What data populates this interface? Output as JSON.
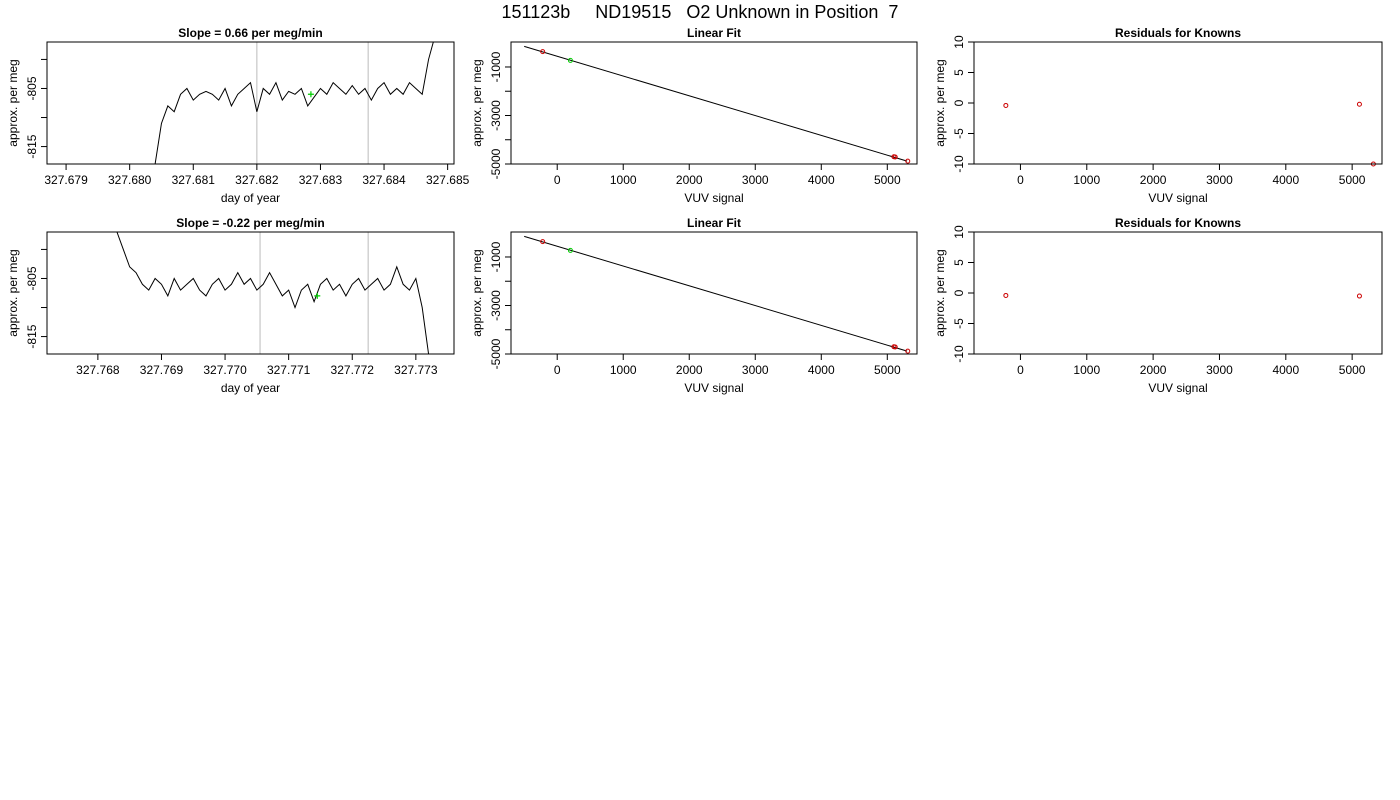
{
  "page": {
    "title": "151123b     ND19515   O2 Unknown in Position  7"
  },
  "chart_data": [
    {
      "type": "line",
      "panel": "time-series-1",
      "title": "Slope =  0.66  per meg/min",
      "xlabel": "day of year",
      "ylabel": "approx. per meg",
      "xlim": [
        327.6787,
        327.6851
      ],
      "ylim": [
        -818,
        -797
      ],
      "xticks": [
        327.679,
        327.68,
        327.681,
        327.682,
        327.683,
        327.684,
        327.685
      ],
      "xtick_labels": [
        "327.679",
        "327.680",
        "327.681",
        "327.682",
        "327.683",
        "327.684",
        "327.685"
      ],
      "yticks": [
        -815,
        -805
      ],
      "ytick_labels": [
        "-815",
        "-805"
      ],
      "yminor": [
        -820,
        -810,
        -800
      ],
      "vlines": [
        327.682,
        327.68375
      ],
      "line_color": "#000000",
      "vline_color": "#bbbbbb",
      "marker_color": "#00cc00",
      "x": [
        327.6804,
        327.6805,
        327.6806,
        327.6807,
        327.6808,
        327.6809,
        327.681,
        327.6811,
        327.6812,
        327.6813,
        327.6814,
        327.6815,
        327.6816,
        327.6817,
        327.6818,
        327.6819,
        327.682,
        327.6821,
        327.6822,
        327.6823,
        327.6824,
        327.6825,
        327.6826,
        327.6827,
        327.6828,
        327.6829,
        327.683,
        327.6831,
        327.6832,
        327.6833,
        327.6834,
        327.6835,
        327.6836,
        327.6837,
        327.6838,
        327.6839,
        327.684,
        327.6841,
        327.6842,
        327.6843,
        327.6844,
        327.6845,
        327.6846,
        327.6847,
        327.6848
      ],
      "y": [
        -818,
        -811,
        -808,
        -809,
        -806,
        -805,
        -807,
        -806,
        -805.5,
        -806,
        -807,
        -805,
        -808,
        -806,
        -805,
        -804,
        -809,
        -805,
        -806,
        -804,
        -807,
        -805.5,
        -806,
        -805,
        -808,
        -806.5,
        -805,
        -806,
        -804,
        -805,
        -806,
        -804.5,
        -806,
        -805,
        -807,
        -805,
        -804,
        -806,
        -805,
        -806,
        -804,
        -805,
        -806,
        -800,
        -796
      ],
      "marker": {
        "x": 327.68285,
        "y": -806
      }
    },
    {
      "type": "scatter",
      "panel": "linear-fit-1",
      "title": "Linear Fit",
      "xlabel": "VUV signal",
      "ylabel": "approx. per meg",
      "xlim": [
        -700,
        5450
      ],
      "ylim": [
        -5000,
        30
      ],
      "xticks": [
        0,
        1000,
        2000,
        3000,
        4000,
        5000
      ],
      "xtick_labels": [
        "0",
        "1000",
        "2000",
        "3000",
        "4000",
        "5000"
      ],
      "yticks": [
        -5000,
        -3000,
        -1000
      ],
      "ytick_labels": [
        "-5000",
        "-3000",
        "-1000"
      ],
      "yminor": [
        -4000,
        -2000
      ],
      "fit_line": {
        "x": [
          -500,
          5300
        ],
        "y": [
          -150,
          -4880
        ]
      },
      "known_points": {
        "x": [
          -220,
          5100,
          5120,
          5310
        ],
        "y": [
          -365,
          -4700,
          -4710,
          -4880
        ]
      },
      "unknown_points": {
        "x": [
          200
        ],
        "y": [
          -730
        ]
      },
      "known_color": "#cc0000",
      "unknown_color": "#00cc00"
    },
    {
      "type": "scatter",
      "panel": "residuals-1",
      "title": "Residuals for Knowns",
      "xlabel": "VUV signal",
      "ylabel": "approx. per meg",
      "xlim": [
        -700,
        5450
      ],
      "ylim": [
        -10,
        10
      ],
      "xticks": [
        0,
        1000,
        2000,
        3000,
        4000,
        5000
      ],
      "xtick_labels": [
        "0",
        "1000",
        "2000",
        "3000",
        "4000",
        "5000"
      ],
      "yticks": [
        -10,
        -5,
        0,
        5,
        10
      ],
      "ytick_labels": [
        "-10",
        "-5",
        "0",
        "5",
        "10"
      ],
      "points": {
        "x": [
          -220,
          5110,
          5320
        ],
        "y": [
          -0.4,
          -0.2,
          -10
        ]
      },
      "point_color": "#cc0000"
    },
    {
      "type": "line",
      "panel": "time-series-2",
      "title": "Slope =  -0.22  per meg/min",
      "xlabel": "day of year",
      "ylabel": "approx. per meg",
      "xlim": [
        327.7672,
        327.7736
      ],
      "ylim": [
        -818,
        -797
      ],
      "xticks": [
        327.768,
        327.769,
        327.77,
        327.771,
        327.772,
        327.773
      ],
      "xtick_labels": [
        "327.768",
        "327.769",
        "327.770",
        "327.771",
        "327.772",
        "327.773"
      ],
      "yticks": [
        -815,
        -805
      ],
      "ytick_labels": [
        "-815",
        "-805"
      ],
      "yminor": [
        -820,
        -810,
        -800
      ],
      "vlines": [
        327.77055,
        327.77225
      ],
      "line_color": "#000000",
      "vline_color": "#bbbbbb",
      "marker_color": "#00cc00",
      "x": [
        327.7683,
        327.7684,
        327.7685,
        327.7686,
        327.7687,
        327.7688,
        327.7689,
        327.769,
        327.7691,
        327.7692,
        327.7693,
        327.7694,
        327.7695,
        327.7696,
        327.7697,
        327.7698,
        327.7699,
        327.77,
        327.7701,
        327.7702,
        327.7703,
        327.7704,
        327.7705,
        327.7706,
        327.7707,
        327.7708,
        327.7709,
        327.771,
        327.7711,
        327.7712,
        327.7713,
        327.7714,
        327.7715,
        327.7716,
        327.7717,
        327.7718,
        327.7719,
        327.772,
        327.7721,
        327.7722,
        327.7723,
        327.7724,
        327.7725,
        327.7726,
        327.7727,
        327.7728,
        327.7729,
        327.773,
        327.7731,
        327.7732
      ],
      "y": [
        -797,
        -800,
        -803,
        -804,
        -806,
        -807,
        -805,
        -806,
        -808,
        -805,
        -807,
        -806,
        -805,
        -807,
        -808,
        -806,
        -805,
        -807,
        -806,
        -804,
        -806,
        -805,
        -807,
        -806,
        -804,
        -806,
        -808,
        -807,
        -810,
        -807,
        -806,
        -809,
        -806,
        -805,
        -807,
        -806,
        -808,
        -806,
        -805,
        -807,
        -806,
        -805,
        -807,
        -806,
        -803,
        -806,
        -807,
        -805,
        -810,
        -818
      ],
      "marker": {
        "x": 327.77145,
        "y": -808
      }
    },
    {
      "type": "scatter",
      "panel": "linear-fit-2",
      "title": "Linear Fit",
      "xlabel": "VUV signal",
      "ylabel": "approx. per meg",
      "xlim": [
        -700,
        5450
      ],
      "ylim": [
        -5000,
        30
      ],
      "xticks": [
        0,
        1000,
        2000,
        3000,
        4000,
        5000
      ],
      "xtick_labels": [
        "0",
        "1000",
        "2000",
        "3000",
        "4000",
        "5000"
      ],
      "yticks": [
        -5000,
        -3000,
        -1000
      ],
      "ytick_labels": [
        "-5000",
        "-3000",
        "-1000"
      ],
      "yminor": [
        -4000,
        -2000
      ],
      "fit_line": {
        "x": [
          -500,
          5300
        ],
        "y": [
          -150,
          -4880
        ]
      },
      "known_points": {
        "x": [
          -220,
          5100,
          5120,
          5310
        ],
        "y": [
          -365,
          -4700,
          -4710,
          -4880
        ]
      },
      "unknown_points": {
        "x": [
          200
        ],
        "y": [
          -730
        ]
      },
      "known_color": "#cc0000",
      "unknown_color": "#00cc00"
    },
    {
      "type": "scatter",
      "panel": "residuals-2",
      "title": "Residuals for Knowns",
      "xlabel": "VUV signal",
      "ylabel": "approx. per meg",
      "xlim": [
        -700,
        5450
      ],
      "ylim": [
        -10,
        10
      ],
      "xticks": [
        0,
        1000,
        2000,
        3000,
        4000,
        5000
      ],
      "xtick_labels": [
        "0",
        "1000",
        "2000",
        "3000",
        "4000",
        "5000"
      ],
      "yticks": [
        -10,
        -5,
        0,
        5,
        10
      ],
      "ytick_labels": [
        "-10",
        "-5",
        "0",
        "5",
        "10"
      ],
      "points": {
        "x": [
          -220,
          5110
        ],
        "y": [
          -0.4,
          -0.5
        ]
      },
      "point_color": "#cc0000"
    }
  ]
}
